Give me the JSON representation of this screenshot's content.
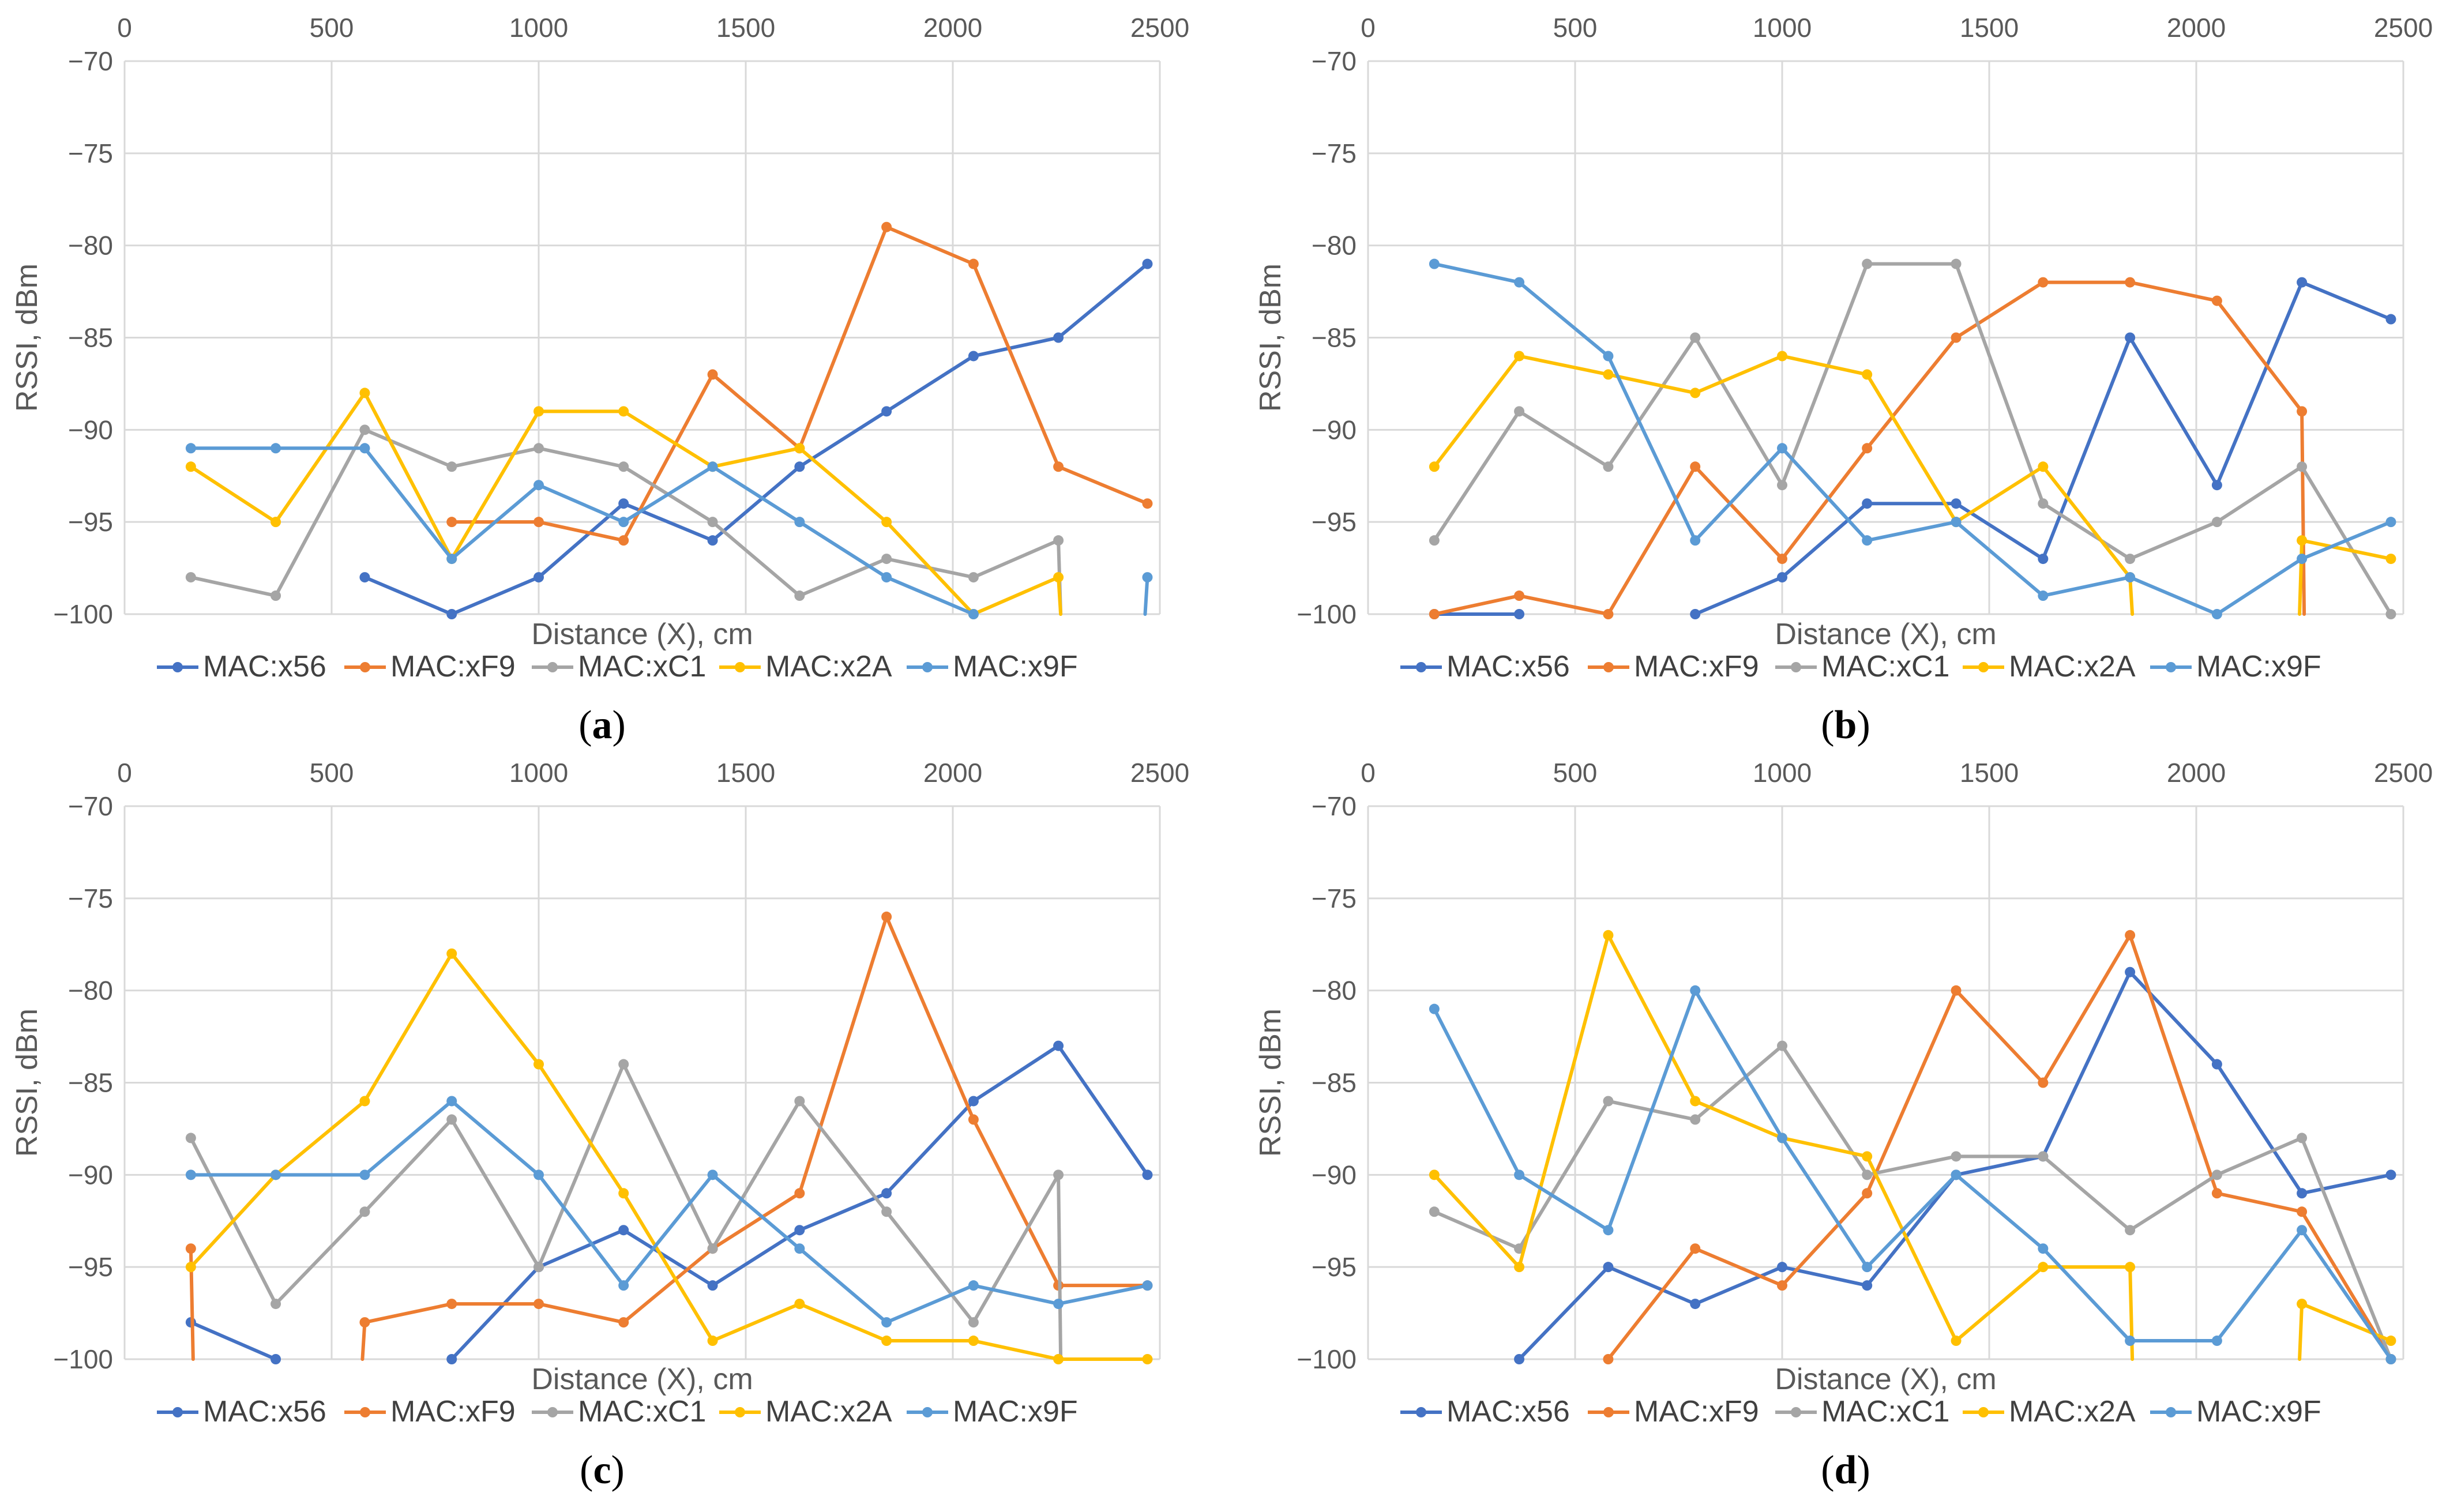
{
  "chart_data": [
    {
      "type": "line",
      "panel_label": "a",
      "xlabel": "Distance (X), cm",
      "ylabel": "RSSI, dBm",
      "xlim": [
        0,
        2500
      ],
      "ylim": [
        -100,
        -70
      ],
      "xticks": [
        "0",
        "500",
        "1000",
        "1500",
        "2000",
        "2500"
      ],
      "yticks": [
        "−70",
        "−75",
        "−80",
        "−85",
        "−90",
        "−95",
        "−100"
      ],
      "grid": true,
      "legend_position": "bottom",
      "x": [
        160,
        365,
        580,
        790,
        1000,
        1205,
        1420,
        1630,
        1840,
        2050,
        2255,
        2470
      ],
      "series": [
        {
          "name": "MAC:x56",
          "color": "#4472C4",
          "values": [
            null,
            null,
            -98,
            -100,
            -98,
            -94,
            -96,
            -92,
            -89,
            -86,
            -85,
            -81
          ]
        },
        {
          "name": "MAC:xF9",
          "color": "#ED7D31",
          "values": [
            null,
            null,
            null,
            -95,
            -95,
            -96,
            -87,
            -91,
            -79,
            -81,
            -92,
            -94
          ]
        },
        {
          "name": "MAC:xC1",
          "color": "#A5A5A5",
          "values": [
            -98,
            -99,
            -90,
            -92,
            -91,
            -92,
            -95,
            -99,
            -97,
            -98,
            -96,
            null
          ]
        },
        {
          "name": "MAC:x2A",
          "color": "#FFC000",
          "values": [
            -92,
            -95,
            -88,
            -97,
            -89,
            -89,
            -92,
            -91,
            -95,
            -100,
            -98,
            null
          ]
        },
        {
          "name": "MAC:x9F",
          "color": "#5B9BD5",
          "values": [
            -91,
            -91,
            -91,
            -97,
            -93,
            -95,
            -92,
            -95,
            -98,
            -100,
            null,
            -98
          ]
        }
      ]
    },
    {
      "type": "line",
      "panel_label": "b",
      "xlabel": "Distance (X), cm",
      "ylabel": "RSSI, dBm",
      "xlim": [
        0,
        2500
      ],
      "ylim": [
        -100,
        -70
      ],
      "xticks": [
        "0",
        "500",
        "1000",
        "1500",
        "2000",
        "2500"
      ],
      "yticks": [
        "−70",
        "−75",
        "−80",
        "−85",
        "−90",
        "−95",
        "−100"
      ],
      "grid": true,
      "legend_position": "bottom",
      "x": [
        160,
        365,
        580,
        790,
        1000,
        1205,
        1420,
        1630,
        1840,
        2050,
        2255,
        2470
      ],
      "series": [
        {
          "name": "MAC:x56",
          "color": "#4472C4",
          "values": [
            -100,
            -100,
            null,
            -100,
            -98,
            -94,
            -94,
            -97,
            -85,
            -93,
            -82,
            -84
          ]
        },
        {
          "name": "MAC:xF9",
          "color": "#ED7D31",
          "values": [
            -100,
            -99,
            -100,
            -92,
            -97,
            -91,
            -85,
            -82,
            -82,
            -83,
            -89,
            null
          ]
        },
        {
          "name": "MAC:xC1",
          "color": "#A5A5A5",
          "values": [
            -96,
            -89,
            -92,
            -85,
            -93,
            -81,
            -81,
            -94,
            -97,
            -95,
            -92,
            -100
          ]
        },
        {
          "name": "MAC:x2A",
          "color": "#FFC000",
          "values": [
            -92,
            -86,
            -87,
            -88,
            -86,
            -87,
            -95,
            -92,
            -98,
            null,
            -96,
            -97
          ]
        },
        {
          "name": "MAC:x9F",
          "color": "#5B9BD5",
          "values": [
            -81,
            -82,
            -86,
            -96,
            -91,
            -96,
            -95,
            -99,
            -98,
            -100,
            -97,
            -95
          ]
        }
      ]
    },
    {
      "type": "line",
      "panel_label": "c",
      "xlabel": "Distance (X), cm",
      "ylabel": "RSSI, dBm",
      "xlim": [
        0,
        2500
      ],
      "ylim": [
        -100,
        -70
      ],
      "xticks": [
        "0",
        "500",
        "1000",
        "1500",
        "2000",
        "2500"
      ],
      "yticks": [
        "−70",
        "−75",
        "−80",
        "−85",
        "−90",
        "−95",
        "−100"
      ],
      "grid": true,
      "legend_position": "bottom",
      "x": [
        160,
        365,
        580,
        790,
        1000,
        1205,
        1420,
        1630,
        1840,
        2050,
        2255,
        2470
      ],
      "series": [
        {
          "name": "MAC:x56",
          "color": "#4472C4",
          "values": [
            -98,
            -100,
            null,
            -100,
            -95,
            -93,
            -96,
            -93,
            -91,
            -86,
            -83,
            -90
          ]
        },
        {
          "name": "MAC:xF9",
          "color": "#ED7D31",
          "values": [
            -94,
            null,
            -98,
            -97,
            -97,
            -98,
            -94,
            -91,
            -76,
            -87,
            -96,
            -96
          ]
        },
        {
          "name": "MAC:xC1",
          "color": "#A5A5A5",
          "values": [
            -88,
            -97,
            -92,
            -87,
            -95,
            -84,
            -94,
            -86,
            -92,
            -98,
            -90,
            null
          ]
        },
        {
          "name": "MAC:x2A",
          "color": "#FFC000",
          "values": [
            -95,
            -90,
            -86,
            -78,
            -84,
            -91,
            -99,
            -97,
            -99,
            -99,
            -100,
            -100
          ]
        },
        {
          "name": "MAC:x9F",
          "color": "#5B9BD5",
          "values": [
            -90,
            -90,
            -90,
            -86,
            -90,
            -96,
            -90,
            -94,
            -98,
            -96,
            -97,
            -96
          ]
        }
      ]
    },
    {
      "type": "line",
      "panel_label": "d",
      "xlabel": "Distance (X), cm",
      "ylabel": "RSSI, dBm",
      "xlim": [
        0,
        2500
      ],
      "ylim": [
        -100,
        -70
      ],
      "xticks": [
        "0",
        "500",
        "1000",
        "1500",
        "2000",
        "2500"
      ],
      "yticks": [
        "−70",
        "−75",
        "−80",
        "−85",
        "−90",
        "−95",
        "−100"
      ],
      "grid": true,
      "legend_position": "bottom",
      "x": [
        160,
        365,
        580,
        790,
        1000,
        1205,
        1420,
        1630,
        1840,
        2050,
        2255,
        2470
      ],
      "series": [
        {
          "name": "MAC:x56",
          "color": "#4472C4",
          "values": [
            null,
            -100,
            -95,
            -97,
            -95,
            -96,
            -90,
            -89,
            -79,
            -84,
            -91,
            -90
          ]
        },
        {
          "name": "MAC:xF9",
          "color": "#ED7D31",
          "values": [
            null,
            null,
            -100,
            -94,
            -96,
            -91,
            -80,
            -85,
            -77,
            -91,
            -92,
            -100
          ]
        },
        {
          "name": "MAC:xC1",
          "color": "#A5A5A5",
          "values": [
            -92,
            -94,
            -86,
            -87,
            -83,
            -90,
            -89,
            -89,
            -93,
            -90,
            -88,
            -100
          ]
        },
        {
          "name": "MAC:x2A",
          "color": "#FFC000",
          "values": [
            -90,
            -95,
            -77,
            -86,
            -88,
            -89,
            -99,
            -95,
            -95,
            null,
            -97,
            -99
          ]
        },
        {
          "name": "MAC:x9F",
          "color": "#5B9BD5",
          "values": [
            -81,
            -90,
            -93,
            -80,
            -88,
            -95,
            -90,
            -94,
            -99,
            -99,
            -93,
            -100
          ]
        }
      ]
    }
  ]
}
